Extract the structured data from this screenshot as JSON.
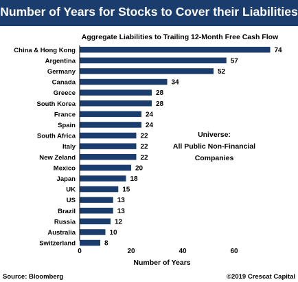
{
  "header": {
    "title": "Number of Years for Stocks to Cover their Liabilities"
  },
  "colors": {
    "banner": "#1b3d6e",
    "bar": "#1b3d6e"
  },
  "chart_data": {
    "type": "bar",
    "orientation": "horizontal",
    "title": "Aggregate Liabilities to Trailing 12-Month Free Cash Flow",
    "xlabel": "Number of Years",
    "ylabel": "",
    "xlim": [
      0,
      80
    ],
    "xticks": [
      0,
      20,
      40,
      60
    ],
    "grid": false,
    "categories": [
      "China & Hong Kong",
      "Argentina",
      "Germany",
      "Canada",
      "Greece",
      "South Korea",
      "France",
      "Spain",
      "South Africa",
      "Italy",
      "New Zeland",
      "Mexico",
      "Japan",
      "UK",
      "US",
      "Brazil",
      "Russia",
      "Australia",
      "Switzerland"
    ],
    "values": [
      74,
      57,
      52,
      34,
      28,
      28,
      24,
      24,
      22,
      22,
      22,
      20,
      18,
      15,
      13,
      13,
      12,
      10,
      8
    ],
    "annotation": [
      "Universe:",
      "All Public Non-Financial",
      "Companies"
    ]
  },
  "footer": {
    "source": "Source: Bloomberg",
    "copyright": "©2019 Crescat Capital"
  }
}
